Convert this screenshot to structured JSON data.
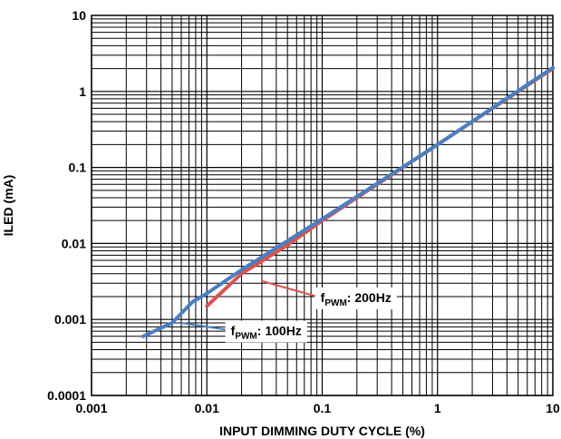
{
  "chart_data": {
    "type": "line",
    "xlabel": "INPUT DIMMING DUTY CYCLE (%)",
    "ylabel": "ILED (mA)",
    "x_scale": "log",
    "y_scale": "log",
    "xlim": [
      0.001,
      10
    ],
    "ylim": [
      0.0001,
      10
    ],
    "grid": true,
    "x_ticks": [
      "0.001",
      "0.01",
      "0.1",
      "1",
      "10"
    ],
    "y_ticks": [
      "0.0001",
      "0.001",
      "0.01",
      "0.1",
      "1",
      "10"
    ],
    "series": [
      {
        "name": "fPWM: 200Hz",
        "color": "#d9534f",
        "points": [
          [
            0.01,
            0.0015
          ],
          [
            0.02,
            0.004
          ],
          [
            0.05,
            0.0095
          ],
          [
            0.1,
            0.02
          ],
          [
            1,
            0.2
          ],
          [
            10,
            2.0
          ]
        ]
      },
      {
        "name": "fPWM: 100Hz",
        "color": "#4a7fc1",
        "points": [
          [
            0.0028,
            0.0006
          ],
          [
            0.005,
            0.0009
          ],
          [
            0.0075,
            0.0017
          ],
          [
            0.01,
            0.0022
          ],
          [
            0.02,
            0.0045
          ],
          [
            0.1,
            0.021
          ],
          [
            1,
            0.2
          ],
          [
            10,
            2.05
          ]
        ]
      }
    ],
    "annotations": [
      {
        "prefix": "f",
        "sub": "PWM",
        "suffix": ": 200Hz",
        "at": [
          0.03,
          0.0032
        ],
        "text_at": [
          0.09,
          0.0017
        ]
      },
      {
        "prefix": "f",
        "sub": "PWM",
        "suffix": ": 100Hz",
        "at": [
          0.006,
          0.0009
        ],
        "text_at": [
          0.015,
          0.00062
        ]
      }
    ]
  }
}
